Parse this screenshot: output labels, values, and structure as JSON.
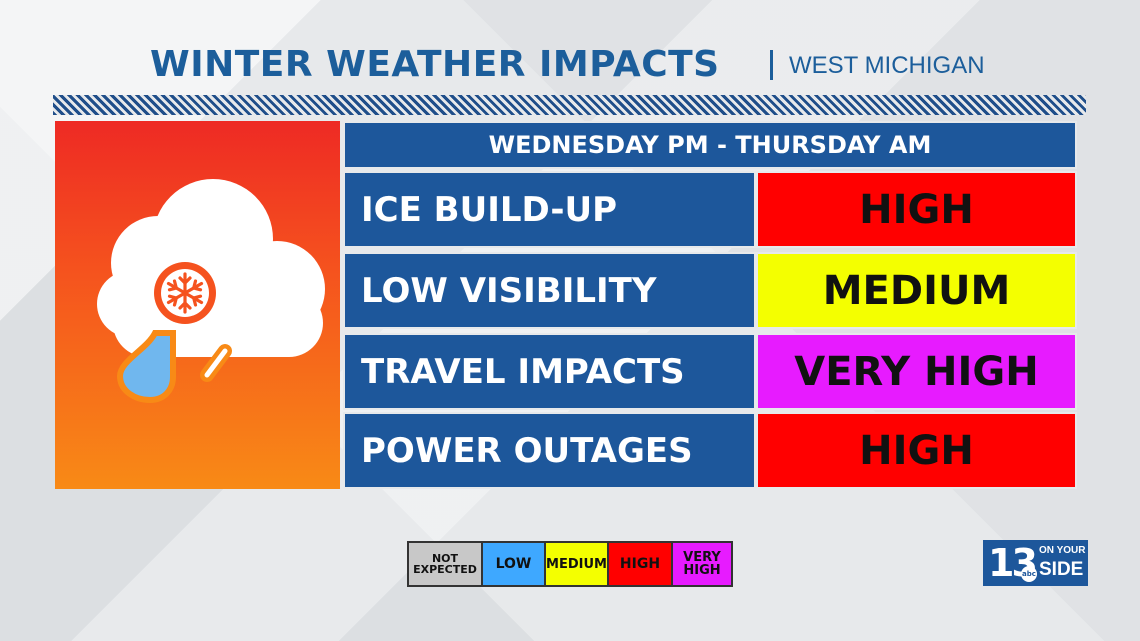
{
  "header": {
    "title": "WINTER WEATHER IMPACTS",
    "subtitle": "WEST MICHIGAN"
  },
  "icon": {
    "name": "snow-rain-cloud-icon",
    "panel_colors": [
      "#ee2a24",
      "#f88a16"
    ]
  },
  "table": {
    "period": "WEDNESDAY PM - THURSDAY AM",
    "rows": [
      {
        "label": "ICE BUILD-UP",
        "value": "HIGH",
        "color": "#ff0000"
      },
      {
        "label": "LOW VISIBILITY",
        "value": "MEDIUM",
        "color": "#f4ff00"
      },
      {
        "label": "TRAVEL IMPACTS",
        "value": "VERY HIGH",
        "color": "#e71bff"
      },
      {
        "label": "POWER OUTAGES",
        "value": "HIGH",
        "color": "#ff0000"
      }
    ]
  },
  "legend": [
    {
      "label": "NOT\nEXPECTED",
      "color": "#c8c8c8"
    },
    {
      "label": "LOW",
      "color": "#3ea8ff"
    },
    {
      "label": "MEDIUM",
      "color": "#f4ff00"
    },
    {
      "label": "HIGH",
      "color": "#ff0000"
    },
    {
      "label": "VERY\nHIGH",
      "color": "#e71bff"
    }
  ],
  "logo": {
    "number": "13",
    "network": "abc",
    "line1": "ON YOUR",
    "line2": "SIDE"
  }
}
